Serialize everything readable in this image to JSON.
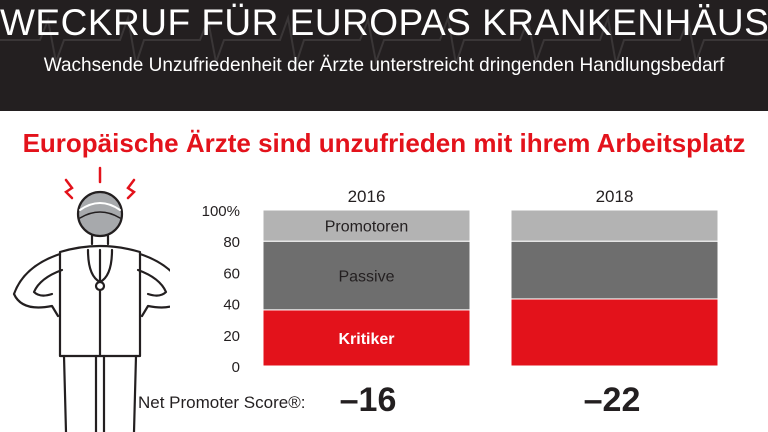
{
  "header": {
    "title": "WECKRUF FÜR EUROPAS KRANKENHÄUSER",
    "subtitle": "Wachsende Unzufriedenheit der Ärzte unterstreicht dringenden Handlungsbedarf"
  },
  "headline": "Europäische Ärzte sind unzufrieden mit ihrem Arbeitsplatz",
  "colors": {
    "header_bg": "#231f20",
    "accent_red": "#e3121b",
    "promotoren": "#b3b3b3",
    "passive": "#6e6e6e",
    "kritiker": "#e3121b"
  },
  "chart_data": {
    "type": "bar",
    "stacked": true,
    "categories": [
      "2016",
      "2018"
    ],
    "series": [
      {
        "name": "Kritiker",
        "values": [
          36,
          43
        ]
      },
      {
        "name": "Passive",
        "values": [
          44,
          37
        ]
      },
      {
        "name": "Promotoren",
        "values": [
          20,
          20
        ]
      }
    ],
    "yticks": [
      "0",
      "20",
      "40",
      "60",
      "80",
      "100%"
    ],
    "ylim": [
      0,
      100
    ],
    "grid": false,
    "legend": "inline labels in first bar"
  },
  "nps": {
    "label": "Net Promoter Score®:",
    "values": [
      "–16",
      "–22"
    ]
  }
}
